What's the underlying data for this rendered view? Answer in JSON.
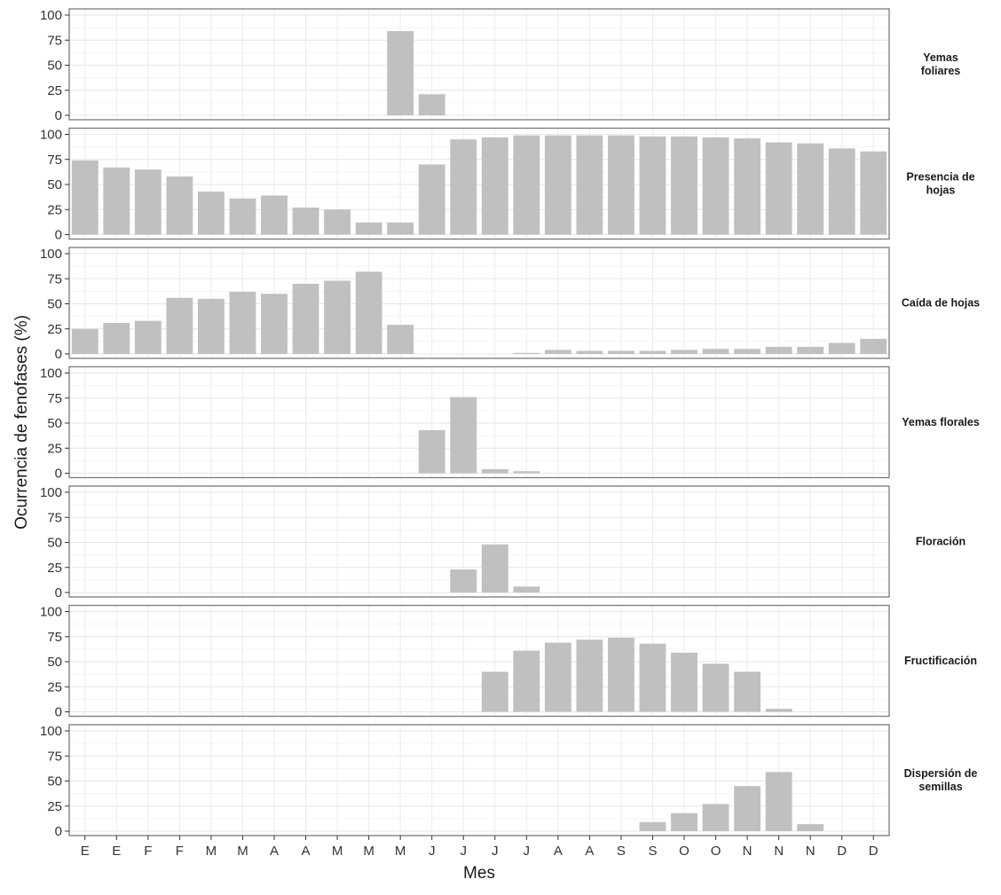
{
  "chart_data": {
    "type": "bar",
    "ylabel": "Ocurrencia de fenofases (%)",
    "xlabel": "Mes",
    "ylim": [
      0,
      105
    ],
    "y_ticks": [
      0,
      25,
      50,
      75,
      100
    ],
    "grid": true,
    "categories": [
      "E",
      "E",
      "F",
      "F",
      "M",
      "M",
      "A",
      "A",
      "M",
      "M",
      "M",
      "J",
      "J",
      "J",
      "J",
      "A",
      "A",
      "S",
      "S",
      "O",
      "O",
      "N",
      "N",
      "N",
      "D",
      "D"
    ],
    "bar_color": "#c0c0c0",
    "panels": [
      {
        "label_lines": [
          "Yemas",
          "foliares"
        ],
        "values": [
          0,
          0,
          0,
          0,
          0,
          0,
          0,
          0,
          0,
          0,
          84,
          21,
          0,
          0,
          0,
          0,
          0,
          0,
          0,
          0,
          0,
          0,
          0,
          0,
          0,
          0
        ]
      },
      {
        "label_lines": [
          "Presencia de",
          "hojas"
        ],
        "values": [
          74,
          67,
          65,
          58,
          43,
          36,
          39,
          27,
          25,
          12,
          12,
          70,
          95,
          97,
          99,
          99,
          99,
          99,
          98,
          98,
          97,
          96,
          92,
          91,
          86,
          83
        ]
      },
      {
        "label_lines": [
          "Caída de hojas"
        ],
        "values": [
          25,
          31,
          33,
          56,
          55,
          62,
          60,
          70,
          73,
          82,
          29,
          0,
          0,
          0,
          1,
          4,
          3,
          3,
          3,
          4,
          5,
          5,
          7,
          7,
          11,
          15
        ]
      },
      {
        "label_lines": [
          "Yemas florales"
        ],
        "values": [
          0,
          0,
          0,
          0,
          0,
          0,
          0,
          0,
          0,
          0,
          0,
          43,
          76,
          4,
          2,
          0,
          0,
          0,
          0,
          0,
          0,
          0,
          0,
          0,
          0,
          0
        ]
      },
      {
        "label_lines": [
          "Floración"
        ],
        "values": [
          0,
          0,
          0,
          0,
          0,
          0,
          0,
          0,
          0,
          0,
          0,
          0,
          23,
          48,
          6,
          0,
          0,
          0,
          0,
          0,
          0,
          0,
          0,
          0,
          0,
          0
        ]
      },
      {
        "label_lines": [
          "Fructificación"
        ],
        "values": [
          0,
          0,
          0,
          0,
          0,
          0,
          0,
          0,
          0,
          0,
          0,
          0,
          0,
          40,
          61,
          69,
          72,
          74,
          68,
          59,
          48,
          40,
          3,
          0,
          0,
          0
        ]
      },
      {
        "label_lines": [
          "Dispersión de",
          "semillas"
        ],
        "values": [
          0,
          0,
          0,
          0,
          0,
          0,
          0,
          0,
          0,
          0,
          0,
          0,
          0,
          0,
          0,
          0,
          0,
          0,
          9,
          18,
          27,
          45,
          59,
          7,
          0,
          0
        ]
      }
    ]
  }
}
